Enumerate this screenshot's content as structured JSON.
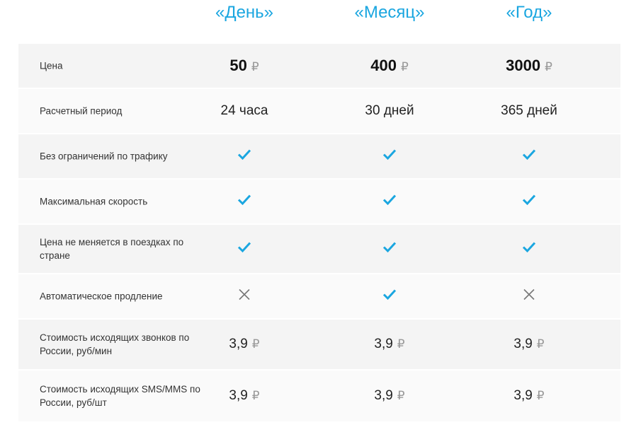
{
  "plans": [
    "«День»",
    "«Месяц»",
    "«Год»"
  ],
  "currency_symbol": "₽",
  "colors": {
    "accent": "#1aa6e0",
    "cross": "#777777"
  },
  "rows": [
    {
      "label": "Цена",
      "type": "price",
      "values": [
        "50",
        "400",
        "3000"
      ]
    },
    {
      "label": "Расчетный период",
      "type": "text",
      "values": [
        "24 часа",
        "30 дней",
        "365 дней"
      ]
    },
    {
      "label": "Без ограничений по трафику",
      "type": "bool",
      "values": [
        true,
        true,
        true
      ]
    },
    {
      "label": "Максимальная скорость",
      "type": "bool",
      "values": [
        true,
        true,
        true
      ]
    },
    {
      "label": "Цена не меняется в поездках по стране",
      "type": "bool",
      "values": [
        true,
        true,
        true
      ]
    },
    {
      "label": "Автоматическое продление",
      "type": "bool",
      "values": [
        false,
        true,
        false
      ]
    },
    {
      "label": "Стоимость исходящих звонков по России, руб/мин",
      "type": "money",
      "values": [
        "3,9",
        "3,9",
        "3,9"
      ]
    },
    {
      "label": "Стоимость исходящих SMS/MMS по России, руб/шт",
      "type": "money",
      "values": [
        "3,9",
        "3,9",
        "3,9"
      ]
    }
  ]
}
